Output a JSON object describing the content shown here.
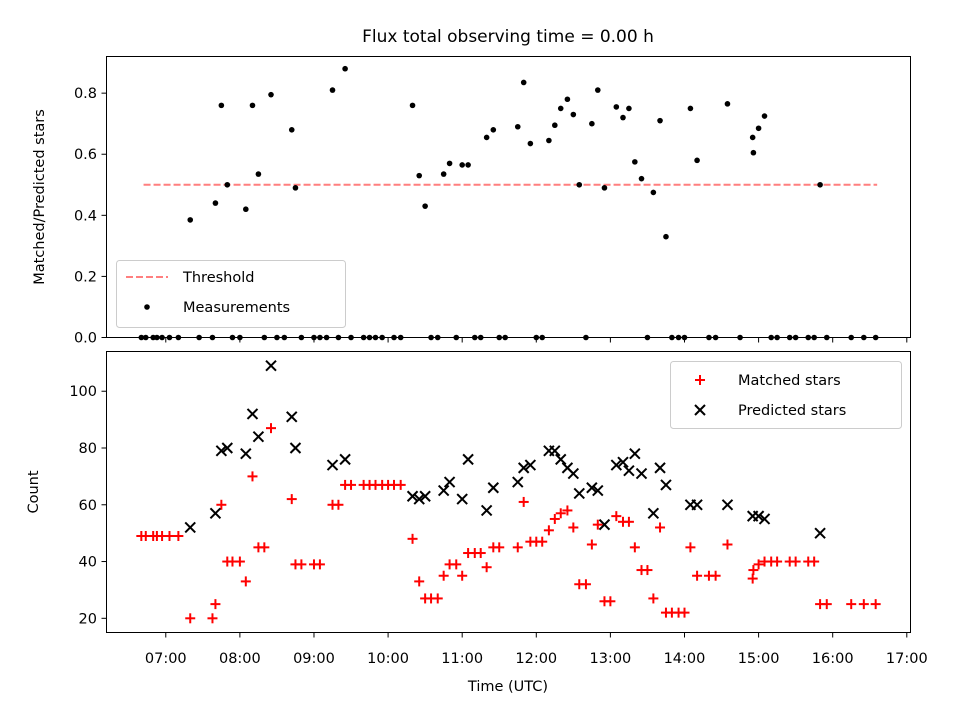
{
  "figure_title": "Flux total observing time = 0.00 h",
  "x_axis_label": "Time (UTC)",
  "chart_data": [
    {
      "type": "scatter",
      "title": "Flux total observing time = 0.00 h",
      "xlabel": "",
      "ylabel": "Matched/Predicted stars",
      "xlim": [
        6.2,
        17.05
      ],
      "ylim": [
        0,
        0.92
      ],
      "yticks": [
        0.0,
        0.2,
        0.4,
        0.6,
        0.8
      ],
      "ytick_labels": [
        "0.0",
        "0.2",
        "0.4",
        "0.6",
        "0.8"
      ],
      "grid": false,
      "legend": "lower-left",
      "threshold": {
        "name": "Threshold",
        "value": 0.5,
        "x_start": 6.7,
        "x_end": 16.6,
        "color": "#ff7f7f"
      },
      "series": [
        {
          "name": "Measurements",
          "marker": "dot",
          "color": "#000000",
          "points": [
            [
              6.67,
              0
            ],
            [
              6.73,
              0
            ],
            [
              6.83,
              0
            ],
            [
              6.88,
              0
            ],
            [
              6.95,
              0
            ],
            [
              7.05,
              0
            ],
            [
              7.17,
              0
            ],
            [
              7.33,
              0.385
            ],
            [
              7.45,
              0
            ],
            [
              7.63,
              0
            ],
            [
              7.67,
              0.44
            ],
            [
              7.75,
              0.76
            ],
            [
              7.83,
              0.5
            ],
            [
              7.9,
              0
            ],
            [
              8.0,
              0
            ],
            [
              8.08,
              0.42
            ],
            [
              8.17,
              0.76
            ],
            [
              8.25,
              0.535
            ],
            [
              8.33,
              0
            ],
            [
              8.42,
              0.795
            ],
            [
              8.5,
              0
            ],
            [
              8.6,
              0
            ],
            [
              8.7,
              0.68
            ],
            [
              8.75,
              0.49
            ],
            [
              8.83,
              0
            ],
            [
              9.0,
              0
            ],
            [
              9.08,
              0
            ],
            [
              9.17,
              0
            ],
            [
              9.25,
              0.81
            ],
            [
              9.33,
              0
            ],
            [
              9.42,
              0.88
            ],
            [
              9.5,
              0
            ],
            [
              9.67,
              0
            ],
            [
              9.75,
              0
            ],
            [
              9.83,
              0
            ],
            [
              9.92,
              0
            ],
            [
              10.08,
              0
            ],
            [
              10.17,
              0
            ],
            [
              10.33,
              0.76
            ],
            [
              10.42,
              0.53
            ],
            [
              10.5,
              0.43
            ],
            [
              10.58,
              0
            ],
            [
              10.67,
              0
            ],
            [
              10.75,
              0.535
            ],
            [
              10.83,
              0.57
            ],
            [
              10.92,
              0
            ],
            [
              11.0,
              0.565
            ],
            [
              11.08,
              0.565
            ],
            [
              11.17,
              0
            ],
            [
              11.25,
              0
            ],
            [
              11.33,
              0.655
            ],
            [
              11.42,
              0.68
            ],
            [
              11.5,
              0
            ],
            [
              11.58,
              0
            ],
            [
              11.75,
              0.69
            ],
            [
              11.83,
              0.835
            ],
            [
              11.92,
              0.635
            ],
            [
              12.0,
              0
            ],
            [
              12.08,
              0
            ],
            [
              12.17,
              0.645
            ],
            [
              12.25,
              0.695
            ],
            [
              12.33,
              0.75
            ],
            [
              12.42,
              0.78
            ],
            [
              12.5,
              0.73
            ],
            [
              12.58,
              0.5
            ],
            [
              12.67,
              0
            ],
            [
              12.75,
              0.7
            ],
            [
              12.83,
              0.81
            ],
            [
              12.92,
              0.49
            ],
            [
              13.08,
              0.755
            ],
            [
              13.17,
              0.72
            ],
            [
              13.25,
              0.75
            ],
            [
              13.33,
              0.575
            ],
            [
              13.42,
              0.52
            ],
            [
              13.5,
              0
            ],
            [
              13.58,
              0.475
            ],
            [
              13.67,
              0.71
            ],
            [
              13.75,
              0.33
            ],
            [
              13.83,
              0
            ],
            [
              13.92,
              0
            ],
            [
              14.0,
              0
            ],
            [
              14.08,
              0.75
            ],
            [
              14.17,
              0.58
            ],
            [
              14.33,
              0
            ],
            [
              14.42,
              0
            ],
            [
              14.58,
              0.765
            ],
            [
              14.75,
              0
            ],
            [
              14.92,
              0.655
            ],
            [
              14.93,
              0.605
            ],
            [
              15.0,
              0.685
            ],
            [
              15.08,
              0.725
            ],
            [
              15.17,
              0
            ],
            [
              15.25,
              0
            ],
            [
              15.42,
              0
            ],
            [
              15.5,
              0
            ],
            [
              15.67,
              0
            ],
            [
              15.75,
              0
            ],
            [
              15.83,
              0.5
            ],
            [
              15.92,
              0
            ],
            [
              16.25,
              0
            ],
            [
              16.42,
              0
            ],
            [
              16.58,
              0
            ]
          ]
        }
      ]
    },
    {
      "type": "scatter",
      "title": "",
      "xlabel": "Time (UTC)",
      "ylabel": "Count",
      "xlim": [
        6.2,
        17.05
      ],
      "ylim": [
        15,
        114
      ],
      "yticks": [
        20,
        40,
        60,
        80,
        100
      ],
      "ytick_labels": [
        "20",
        "40",
        "60",
        "80",
        "100"
      ],
      "xticks": [
        7,
        8,
        9,
        10,
        11,
        12,
        13,
        14,
        15,
        16,
        17
      ],
      "xtick_labels": [
        "07:00",
        "08:00",
        "09:00",
        "10:00",
        "11:00",
        "12:00",
        "13:00",
        "14:00",
        "15:00",
        "16:00",
        "17:00"
      ],
      "grid": false,
      "legend": "top-right",
      "series": [
        {
          "name": "Matched stars",
          "marker": "plus",
          "color": "#ff0000",
          "points": [
            [
              6.67,
              49
            ],
            [
              6.73,
              49
            ],
            [
              6.83,
              49
            ],
            [
              6.88,
              49
            ],
            [
              6.95,
              49
            ],
            [
              7.05,
              49
            ],
            [
              7.17,
              49
            ],
            [
              7.33,
              20
            ],
            [
              7.63,
              20
            ],
            [
              7.67,
              25
            ],
            [
              7.75,
              60
            ],
            [
              7.83,
              40
            ],
            [
              7.9,
              40
            ],
            [
              8.0,
              40
            ],
            [
              8.08,
              33
            ],
            [
              8.17,
              70
            ],
            [
              8.25,
              45
            ],
            [
              8.33,
              45
            ],
            [
              8.42,
              87
            ],
            [
              8.7,
              62
            ],
            [
              8.75,
              39
            ],
            [
              8.83,
              39
            ],
            [
              9.0,
              39
            ],
            [
              9.08,
              39
            ],
            [
              9.25,
              60
            ],
            [
              9.33,
              60
            ],
            [
              9.42,
              67
            ],
            [
              9.5,
              67
            ],
            [
              9.67,
              67
            ],
            [
              9.75,
              67
            ],
            [
              9.83,
              67
            ],
            [
              9.92,
              67
            ],
            [
              10.0,
              67
            ],
            [
              10.08,
              67
            ],
            [
              10.17,
              67
            ],
            [
              10.33,
              48
            ],
            [
              10.42,
              33
            ],
            [
              10.5,
              27
            ],
            [
              10.58,
              27
            ],
            [
              10.67,
              27
            ],
            [
              10.75,
              35
            ],
            [
              10.83,
              39
            ],
            [
              10.92,
              39
            ],
            [
              11.0,
              35
            ],
            [
              11.08,
              43
            ],
            [
              11.17,
              43
            ],
            [
              11.25,
              43
            ],
            [
              11.33,
              38
            ],
            [
              11.42,
              45
            ],
            [
              11.5,
              45
            ],
            [
              11.75,
              45
            ],
            [
              11.83,
              61
            ],
            [
              11.92,
              47
            ],
            [
              12.0,
              47
            ],
            [
              12.08,
              47
            ],
            [
              12.17,
              51
            ],
            [
              12.25,
              55
            ],
            [
              12.33,
              57
            ],
            [
              12.42,
              58
            ],
            [
              12.5,
              52
            ],
            [
              12.58,
              32
            ],
            [
              12.67,
              32
            ],
            [
              12.75,
              46
            ],
            [
              12.83,
              53
            ],
            [
              12.92,
              26
            ],
            [
              13.0,
              26
            ],
            [
              13.08,
              56
            ],
            [
              13.17,
              54
            ],
            [
              13.25,
              54
            ],
            [
              13.33,
              45
            ],
            [
              13.42,
              37
            ],
            [
              13.5,
              37
            ],
            [
              13.58,
              27
            ],
            [
              13.67,
              52
            ],
            [
              13.75,
              22
            ],
            [
              13.83,
              22
            ],
            [
              13.92,
              22
            ],
            [
              14.0,
              22
            ],
            [
              14.08,
              45
            ],
            [
              14.17,
              35
            ],
            [
              14.33,
              35
            ],
            [
              14.42,
              35
            ],
            [
              14.58,
              46
            ],
            [
              14.92,
              34
            ],
            [
              14.93,
              37
            ],
            [
              15.0,
              39
            ],
            [
              15.08,
              40
            ],
            [
              15.17,
              40
            ],
            [
              15.25,
              40
            ],
            [
              15.42,
              40
            ],
            [
              15.5,
              40
            ],
            [
              15.67,
              40
            ],
            [
              15.75,
              40
            ],
            [
              15.83,
              25
            ],
            [
              15.92,
              25
            ],
            [
              16.25,
              25
            ],
            [
              16.42,
              25
            ],
            [
              16.58,
              25
            ]
          ]
        },
        {
          "name": "Predicted stars",
          "marker": "x",
          "color": "#000000",
          "points": [
            [
              7.33,
              52
            ],
            [
              7.67,
              57
            ],
            [
              7.75,
              79
            ],
            [
              7.83,
              80
            ],
            [
              8.08,
              78
            ],
            [
              8.17,
              92
            ],
            [
              8.25,
              84
            ],
            [
              8.42,
              109
            ],
            [
              8.7,
              91
            ],
            [
              8.75,
              80
            ],
            [
              9.25,
              74
            ],
            [
              9.42,
              76
            ],
            [
              10.33,
              63
            ],
            [
              10.42,
              62
            ],
            [
              10.5,
              63
            ],
            [
              10.75,
              65
            ],
            [
              10.83,
              68
            ],
            [
              11.0,
              62
            ],
            [
              11.08,
              76
            ],
            [
              11.33,
              58
            ],
            [
              11.42,
              66
            ],
            [
              11.75,
              68
            ],
            [
              11.83,
              73
            ],
            [
              11.92,
              74
            ],
            [
              12.17,
              79
            ],
            [
              12.25,
              79
            ],
            [
              12.33,
              76
            ],
            [
              12.42,
              73
            ],
            [
              12.5,
              71
            ],
            [
              12.58,
              64
            ],
            [
              12.75,
              66
            ],
            [
              12.83,
              65
            ],
            [
              12.92,
              53
            ],
            [
              13.08,
              74
            ],
            [
              13.17,
              75
            ],
            [
              13.25,
              72
            ],
            [
              13.33,
              78
            ],
            [
              13.42,
              71
            ],
            [
              13.58,
              57
            ],
            [
              13.67,
              73
            ],
            [
              13.75,
              67
            ],
            [
              14.08,
              60
            ],
            [
              14.17,
              60
            ],
            [
              14.58,
              60
            ],
            [
              14.92,
              56
            ],
            [
              15.0,
              56
            ],
            [
              15.08,
              55
            ],
            [
              15.83,
              50
            ]
          ]
        }
      ]
    }
  ]
}
